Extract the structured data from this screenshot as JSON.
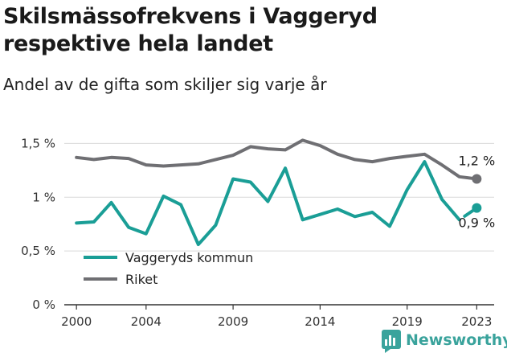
{
  "title": "Skilsmässofrekvens i Vaggeryd respektive hela landet",
  "subtitle": "Andel av de gifta som skiljer sig varje år",
  "brand": {
    "name": "Newsworthy",
    "icon": "newsworthy-logo-icon"
  },
  "colors": {
    "kommun": "#1a9e96",
    "riket": "#6f6f73",
    "grid": "#d9d9d9",
    "axis": "#333333"
  },
  "chart_data": {
    "type": "line",
    "title": "Skilsmässofrekvens i Vaggeryd respektive hela landet",
    "subtitle": "Andel av de gifta som skiljer sig varje år",
    "x": [
      2000,
      2001,
      2002,
      2003,
      2004,
      2005,
      2006,
      2007,
      2008,
      2009,
      2010,
      2011,
      2012,
      2013,
      2014,
      2015,
      2016,
      2017,
      2018,
      2019,
      2020,
      2021,
      2022,
      2023
    ],
    "xticks": [
      2000,
      2004,
      2009,
      2014,
      2019,
      2023
    ],
    "yticks": [
      0,
      0.5,
      1,
      1.5
    ],
    "ytick_labels": [
      "0 %",
      "0,5 %",
      "1 %",
      "1,5 %"
    ],
    "ylim": [
      0,
      1.6
    ],
    "xlim": [
      1999.3,
      2024
    ],
    "grid": "horizontal",
    "legend": {
      "placement": "bottom-left",
      "entries": [
        "Vaggeryds kommun",
        "Riket"
      ]
    },
    "series": [
      {
        "name": "Vaggeryds kommun",
        "values": [
          0.76,
          0.77,
          0.95,
          0.72,
          0.66,
          1.01,
          0.93,
          0.56,
          0.74,
          1.17,
          1.14,
          0.96,
          1.27,
          0.79,
          0.84,
          0.89,
          0.82,
          0.86,
          0.73,
          1.07,
          1.33,
          0.98,
          0.79,
          0.9
        ],
        "end_label": "0,9 %",
        "gap_before_last": true
      },
      {
        "name": "Riket",
        "values": [
          1.37,
          1.35,
          1.37,
          1.36,
          1.3,
          1.29,
          1.3,
          1.31,
          1.35,
          1.39,
          1.47,
          1.45,
          1.44,
          1.53,
          1.48,
          1.4,
          1.35,
          1.33,
          1.36,
          1.38,
          1.4,
          1.3,
          1.19,
          1.17
        ],
        "end_label": "1,2 %"
      }
    ]
  }
}
